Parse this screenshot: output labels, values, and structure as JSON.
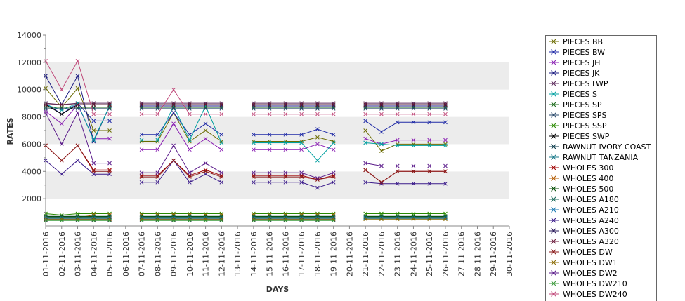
{
  "chart_data": {
    "type": "line",
    "xlabel": "DAYS",
    "ylabel": "RATES",
    "ylim": [
      0,
      14000
    ],
    "yticks": [
      2000,
      4000,
      6000,
      8000,
      10000,
      12000,
      14000
    ],
    "grid": "alternating horizontal bands",
    "legend_position": "right",
    "x": [
      "01-11-2016",
      "02-11-2016",
      "03-11-2016",
      "04-11-2016",
      "05-11-2016",
      "06-11-2016",
      "07-11-2016",
      "08-11-2016",
      "09-11-2016",
      "10-11-2016",
      "11-11-2016",
      "12-11-2016",
      "13-11-2016",
      "14-11-2016",
      "15-11-2016",
      "16-11-2016",
      "17-11-2016",
      "18-11-2016",
      "19-11-2016",
      "20-11-2016",
      "21-11-2016",
      "22-11-2016",
      "23-11-2016",
      "24-11-2016",
      "25-11-2016",
      "26-11-2016",
      "27-11-2016",
      "28-11-2016",
      "29-11-2016",
      "30-11-2016"
    ],
    "series": [
      {
        "name": "PIECES BB",
        "color": "#6b6b00",
        "values": [
          10100,
          8700,
          10100,
          7000,
          7000,
          null,
          6200,
          6200,
          8300,
          6200,
          7000,
          6200,
          null,
          6200,
          6200,
          6200,
          6200,
          6500,
          6200,
          null,
          7000,
          5500,
          6000,
          6000,
          6000,
          6000,
          null,
          null,
          null,
          null
        ]
      },
      {
        "name": "PIECES BW",
        "color": "#1f2aa6",
        "values": [
          9000,
          8200,
          9000,
          7700,
          7700,
          null,
          6700,
          6700,
          8300,
          6700,
          7500,
          6700,
          null,
          6700,
          6700,
          6700,
          6700,
          7100,
          6700,
          null,
          7700,
          6900,
          7600,
          7600,
          7600,
          7600,
          null,
          null,
          null,
          null
        ]
      },
      {
        "name": "PIECES JH",
        "color": "#8a1fb3",
        "values": [
          8400,
          7500,
          8900,
          6400,
          6400,
          null,
          5600,
          5600,
          7500,
          5600,
          6400,
          5600,
          null,
          5600,
          5600,
          5600,
          5600,
          6000,
          5600,
          null,
          6400,
          6000,
          6300,
          6300,
          6300,
          6300,
          null,
          null,
          null,
          null
        ]
      },
      {
        "name": "PIECES JK",
        "color": "#1a1a80",
        "values": [
          11000,
          8900,
          11000,
          6200,
          8800,
          null,
          8800,
          8800,
          8800,
          8800,
          8800,
          8800,
          null,
          8800,
          8800,
          8800,
          8800,
          8800,
          8800,
          null,
          8800,
          8800,
          8800,
          8800,
          8800,
          8800,
          null,
          null,
          null,
          null
        ]
      },
      {
        "name": "PIECES LWP",
        "color": "#5c2a5c",
        "values": [
          9000,
          8900,
          9000,
          9000,
          9000,
          null,
          9000,
          9000,
          9000,
          9000,
          9000,
          9000,
          null,
          9000,
          9000,
          9000,
          9000,
          9000,
          9000,
          null,
          9000,
          9000,
          9000,
          9000,
          9000,
          9000,
          null,
          null,
          null,
          null
        ]
      },
      {
        "name": "PIECES S",
        "color": "#00a0a0",
        "values": [
          8900,
          8500,
          9000,
          6300,
          8800,
          null,
          6300,
          6300,
          8800,
          6300,
          8800,
          6100,
          null,
          6100,
          6100,
          6100,
          6100,
          4800,
          6100,
          null,
          6100,
          6000,
          5900,
          5900,
          5900,
          5900,
          null,
          null,
          null,
          null
        ]
      },
      {
        "name": "PIECES SP",
        "color": "#1b6b1b",
        "values": [
          8700,
          8700,
          8700,
          8700,
          8700,
          null,
          8700,
          8700,
          8700,
          8700,
          8700,
          8700,
          null,
          8700,
          8700,
          8700,
          8700,
          8700,
          8700,
          null,
          8700,
          8700,
          8700,
          8700,
          8700,
          8700,
          null,
          null,
          null,
          null
        ]
      },
      {
        "name": "PIECES SPS",
        "color": "#2a4a6b",
        "values": [
          8600,
          8600,
          8600,
          8600,
          8600,
          null,
          8600,
          8600,
          8600,
          8600,
          8600,
          8600,
          null,
          8600,
          8600,
          8600,
          8600,
          8600,
          8600,
          null,
          8600,
          8600,
          8600,
          8600,
          8600,
          8600,
          null,
          null,
          null,
          null
        ]
      },
      {
        "name": "PIECES SSP",
        "color": "#2a8a00",
        "values": [
          900,
          800,
          900,
          900,
          900,
          null,
          900,
          900,
          900,
          900,
          900,
          900,
          null,
          900,
          900,
          900,
          900,
          900,
          900,
          null,
          900,
          900,
          900,
          900,
          900,
          900,
          null,
          null,
          null,
          null
        ]
      },
      {
        "name": "PIECES SWP",
        "color": "#000000",
        "values": [
          8900,
          8200,
          8900,
          8900,
          8900,
          null,
          8900,
          8900,
          8900,
          8900,
          8900,
          8900,
          null,
          8900,
          8900,
          8900,
          8900,
          8900,
          8900,
          null,
          8900,
          8900,
          8900,
          8900,
          8900,
          8900,
          null,
          null,
          null,
          null
        ]
      },
      {
        "name": "RAWNUT IVORY COAST",
        "color": "#0a3a4a",
        "values": [
          700,
          700,
          700,
          700,
          700,
          null,
          700,
          700,
          700,
          700,
          700,
          700,
          null,
          700,
          700,
          700,
          700,
          700,
          700,
          null,
          700,
          700,
          700,
          700,
          700,
          700,
          null,
          null,
          null,
          null
        ]
      },
      {
        "name": "RAWNUT TANZANIA",
        "color": "#1a7a8a",
        "values": [
          600,
          600,
          600,
          600,
          600,
          null,
          600,
          600,
          600,
          600,
          600,
          600,
          null,
          600,
          600,
          600,
          600,
          600,
          600,
          null,
          600,
          600,
          600,
          600,
          600,
          600,
          null,
          null,
          null,
          null
        ]
      },
      {
        "name": "WHOLES 300",
        "color": "#a00000",
        "values": [
          5900,
          4800,
          5900,
          4100,
          4100,
          null,
          3700,
          3700,
          4800,
          3700,
          4100,
          3700,
          null,
          3700,
          3700,
          3700,
          3700,
          3400,
          3700,
          null,
          4100,
          3200,
          4000,
          4000,
          4000,
          4000,
          null,
          null,
          null,
          null
        ]
      },
      {
        "name": "WHOLES 400",
        "color": "#b35a00",
        "values": [
          600,
          600,
          600,
          800,
          800,
          null,
          800,
          800,
          800,
          800,
          800,
          800,
          null,
          800,
          800,
          800,
          800,
          800,
          800,
          null,
          null,
          null,
          null,
          null,
          null,
          null,
          null,
          null,
          null,
          null
        ]
      },
      {
        "name": "WHOLES 500",
        "color": "#004a00",
        "values": [
          700,
          700,
          700,
          700,
          700,
          null,
          700,
          700,
          700,
          700,
          700,
          700,
          null,
          700,
          700,
          700,
          700,
          700,
          700,
          null,
          700,
          700,
          700,
          700,
          700,
          700,
          null,
          null,
          null,
          null
        ]
      },
      {
        "name": "WHOLES A180",
        "color": "#1a6a5a",
        "values": [
          650,
          650,
          650,
          650,
          650,
          null,
          650,
          650,
          650,
          650,
          650,
          650,
          null,
          650,
          650,
          650,
          650,
          650,
          650,
          null,
          650,
          650,
          650,
          650,
          650,
          650,
          null,
          null,
          null,
          null
        ]
      },
      {
        "name": "WHOLES A210",
        "color": "#1a7ab3",
        "values": [
          550,
          550,
          550,
          550,
          550,
          null,
          550,
          550,
          550,
          550,
          550,
          550,
          null,
          550,
          550,
          550,
          550,
          550,
          550,
          null,
          550,
          550,
          550,
          550,
          550,
          550,
          null,
          null,
          null,
          null
        ]
      },
      {
        "name": "WHOLES A240",
        "color": "#3a1a8a",
        "values": [
          4800,
          3800,
          4800,
          3800,
          3800,
          null,
          3200,
          3200,
          4800,
          3200,
          3800,
          3200,
          null,
          3200,
          3200,
          3200,
          3200,
          2800,
          3200,
          null,
          3200,
          3100,
          3100,
          3100,
          3100,
          3100,
          null,
          null,
          null,
          null
        ]
      },
      {
        "name": "WHOLES A300",
        "color": "#2a1a5a",
        "values": [
          450,
          450,
          450,
          450,
          450,
          null,
          450,
          450,
          450,
          450,
          450,
          450,
          null,
          450,
          450,
          450,
          450,
          450,
          450,
          null,
          null,
          null,
          null,
          null,
          null,
          null,
          null,
          null,
          null,
          null
        ]
      },
      {
        "name": "WHOLES A320",
        "color": "#6a1a3a",
        "values": [
          8900,
          8900,
          8900,
          8900,
          8900,
          null,
          8900,
          8900,
          8900,
          8900,
          8900,
          8900,
          null,
          8900,
          8900,
          8900,
          8900,
          8900,
          8900,
          null,
          8900,
          8900,
          8900,
          8900,
          8900,
          8900,
          null,
          null,
          null,
          null
        ]
      },
      {
        "name": "WHOLES DW",
        "color": "#8a1a1a",
        "values": [
          5900,
          4800,
          5900,
          4000,
          4000,
          null,
          3600,
          3600,
          4800,
          3600,
          4000,
          3600,
          null,
          3600,
          3600,
          3600,
          3600,
          3400,
          3600,
          null,
          4100,
          3200,
          4000,
          4000,
          4000,
          4000,
          null,
          null,
          null,
          null
        ]
      },
      {
        "name": "WHOLES DW1",
        "color": "#8a6a00",
        "values": [
          500,
          500,
          500,
          500,
          500,
          null,
          500,
          500,
          500,
          500,
          500,
          500,
          null,
          500,
          500,
          500,
          500,
          500,
          500,
          null,
          500,
          500,
          500,
          500,
          500,
          500,
          null,
          null,
          null,
          null
        ]
      },
      {
        "name": "WHOLES DW2",
        "color": "#5a1a8a",
        "values": [
          8300,
          6000,
          8300,
          4600,
          4600,
          null,
          3900,
          3900,
          5900,
          3900,
          4600,
          3900,
          null,
          3900,
          3900,
          3900,
          3900,
          3500,
          3900,
          null,
          4600,
          4400,
          4400,
          4400,
          4400,
          4400,
          null,
          null,
          null,
          null
        ]
      },
      {
        "name": "WHOLES DW210",
        "color": "#3a9a3a",
        "values": [
          400,
          400,
          400,
          400,
          400,
          null,
          400,
          400,
          400,
          400,
          400,
          400,
          null,
          400,
          400,
          400,
          400,
          400,
          400,
          null,
          null,
          null,
          null,
          null,
          null,
          null,
          null,
          null,
          null,
          null
        ]
      },
      {
        "name": "WHOLES DW240",
        "color": "#c04a7a",
        "values": [
          12100,
          10000,
          12100,
          8200,
          8200,
          null,
          8200,
          8200,
          10000,
          8200,
          8200,
          8200,
          null,
          8200,
          8200,
          8200,
          8200,
          8200,
          8200,
          null,
          8200,
          8200,
          8200,
          8200,
          8200,
          8200,
          null,
          null,
          null,
          null
        ]
      }
    ]
  }
}
